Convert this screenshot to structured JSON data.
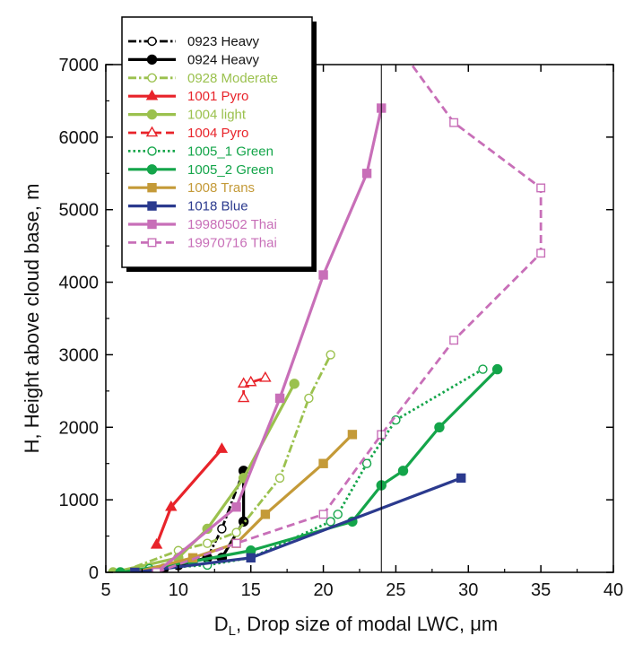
{
  "chart_data": {
    "type": "line",
    "title": "",
    "xlabel": "D",
    "xlabel_sub": "L",
    "xlabel_rest": ", Drop size of modal LWC, μm",
    "ylabel": "H, Height above cloud base, m",
    "xlim": [
      5,
      40
    ],
    "ylim": [
      0,
      7000
    ],
    "x_ticks": [
      5,
      10,
      15,
      20,
      25,
      30,
      35,
      40
    ],
    "y_ticks": [
      0,
      1000,
      2000,
      3000,
      4000,
      5000,
      6000,
      7000
    ],
    "x_tick_labels": [
      "5",
      "10",
      "15",
      "20",
      "25",
      "30",
      "35",
      "40"
    ],
    "y_tick_labels": [
      "0",
      "1000",
      "2000",
      "3000",
      "4000",
      "5000",
      "6000",
      "7000"
    ],
    "grid": false,
    "legend_position": "top-left",
    "reference_line": {
      "x": 24
    },
    "series": [
      {
        "name": "0923 Heavy",
        "color": "#000000",
        "dash": "dashdot",
        "marker": "circle-open",
        "points": [
          [
            10,
            100
          ],
          [
            12,
            200
          ],
          [
            13,
            600
          ],
          [
            14.5,
            1400
          ]
        ]
      },
      {
        "name": "0924 Heavy",
        "color": "#000000",
        "dash": "solid",
        "marker": "circle-filled",
        "points": [
          [
            9,
            50
          ],
          [
            10,
            100
          ],
          [
            12,
            200
          ],
          [
            13,
            200
          ],
          [
            14.5,
            700
          ],
          [
            14.5,
            1400
          ]
        ]
      },
      {
        "name": "0928 Moderate",
        "color": "#9bc14e",
        "dash": "dashdot",
        "marker": "circle-open",
        "points": [
          [
            6,
            0
          ],
          [
            10,
            300
          ],
          [
            12,
            400
          ],
          [
            14,
            550
          ],
          [
            17,
            1300
          ],
          [
            19,
            2400
          ],
          [
            20.5,
            3000
          ]
        ]
      },
      {
        "name": "1001 Pyro",
        "color": "#e8232a",
        "dash": "solid",
        "marker": "triangle-filled",
        "points": [
          [
            8.5,
            380
          ],
          [
            9.5,
            900
          ],
          [
            13,
            1700
          ]
        ]
      },
      {
        "name": "1004 light",
        "color": "#9bc14e",
        "dash": "solid",
        "marker": "circle-filled",
        "points": [
          [
            5.5,
            0
          ],
          [
            10,
            200
          ],
          [
            12,
            600
          ],
          [
            14.5,
            1300
          ],
          [
            18,
            2600
          ]
        ]
      },
      {
        "name": "1004 Pyro",
        "color": "#e8232a",
        "dash": "dash",
        "marker": "triangle-open",
        "points": [
          [
            14.5,
            2400
          ],
          [
            14.5,
            2600
          ],
          [
            15,
            2620
          ],
          [
            16,
            2680
          ]
        ]
      },
      {
        "name": "1005_1 Green",
        "color": "#14a54a",
        "dash": "dot",
        "marker": "circle-open",
        "points": [
          [
            8,
            50
          ],
          [
            12,
            100
          ],
          [
            15,
            200
          ],
          [
            20.5,
            700
          ],
          [
            21,
            800
          ],
          [
            23,
            1500
          ],
          [
            25,
            2100
          ],
          [
            31,
            2800
          ]
        ]
      },
      {
        "name": "1005_2 Green",
        "color": "#14a54a",
        "dash": "solid",
        "marker": "circle-filled",
        "points": [
          [
            6,
            0
          ],
          [
            11,
            150
          ],
          [
            15,
            300
          ],
          [
            22,
            700
          ],
          [
            24,
            1200
          ],
          [
            25.5,
            1400
          ],
          [
            28,
            2000
          ],
          [
            32,
            2800
          ]
        ]
      },
      {
        "name": "1008 Trans",
        "color": "#c49a38",
        "dash": "solid",
        "marker": "square-filled",
        "points": [
          [
            7,
            0
          ],
          [
            11,
            200
          ],
          [
            14,
            400
          ],
          [
            16,
            800
          ],
          [
            20,
            1500
          ],
          [
            22,
            1900
          ]
        ]
      },
      {
        "name": "1018 Blue",
        "color": "#2b3a8e",
        "dash": "solid",
        "marker": "square-filled",
        "points": [
          [
            7,
            0
          ],
          [
            15,
            200
          ],
          [
            29.5,
            1300
          ]
        ]
      },
      {
        "name": "19980502 Thai",
        "color": "#c86fb8",
        "dash": "solid",
        "marker": "square-filled",
        "points": [
          [
            8.5,
            0
          ],
          [
            14,
            900
          ],
          [
            17,
            2400
          ],
          [
            20,
            4100
          ],
          [
            23,
            5500
          ],
          [
            24,
            6400
          ]
        ]
      },
      {
        "name": "19970716 Thai",
        "color": "#c86fb8",
        "dash": "dash",
        "marker": "square-open",
        "points": [
          [
            8.5,
            0
          ],
          [
            14,
            400
          ],
          [
            20,
            800
          ],
          [
            24,
            1900
          ],
          [
            29,
            3200
          ],
          [
            35,
            4400
          ],
          [
            35,
            5300
          ],
          [
            29,
            6200
          ],
          [
            25,
            7300
          ]
        ]
      }
    ]
  }
}
